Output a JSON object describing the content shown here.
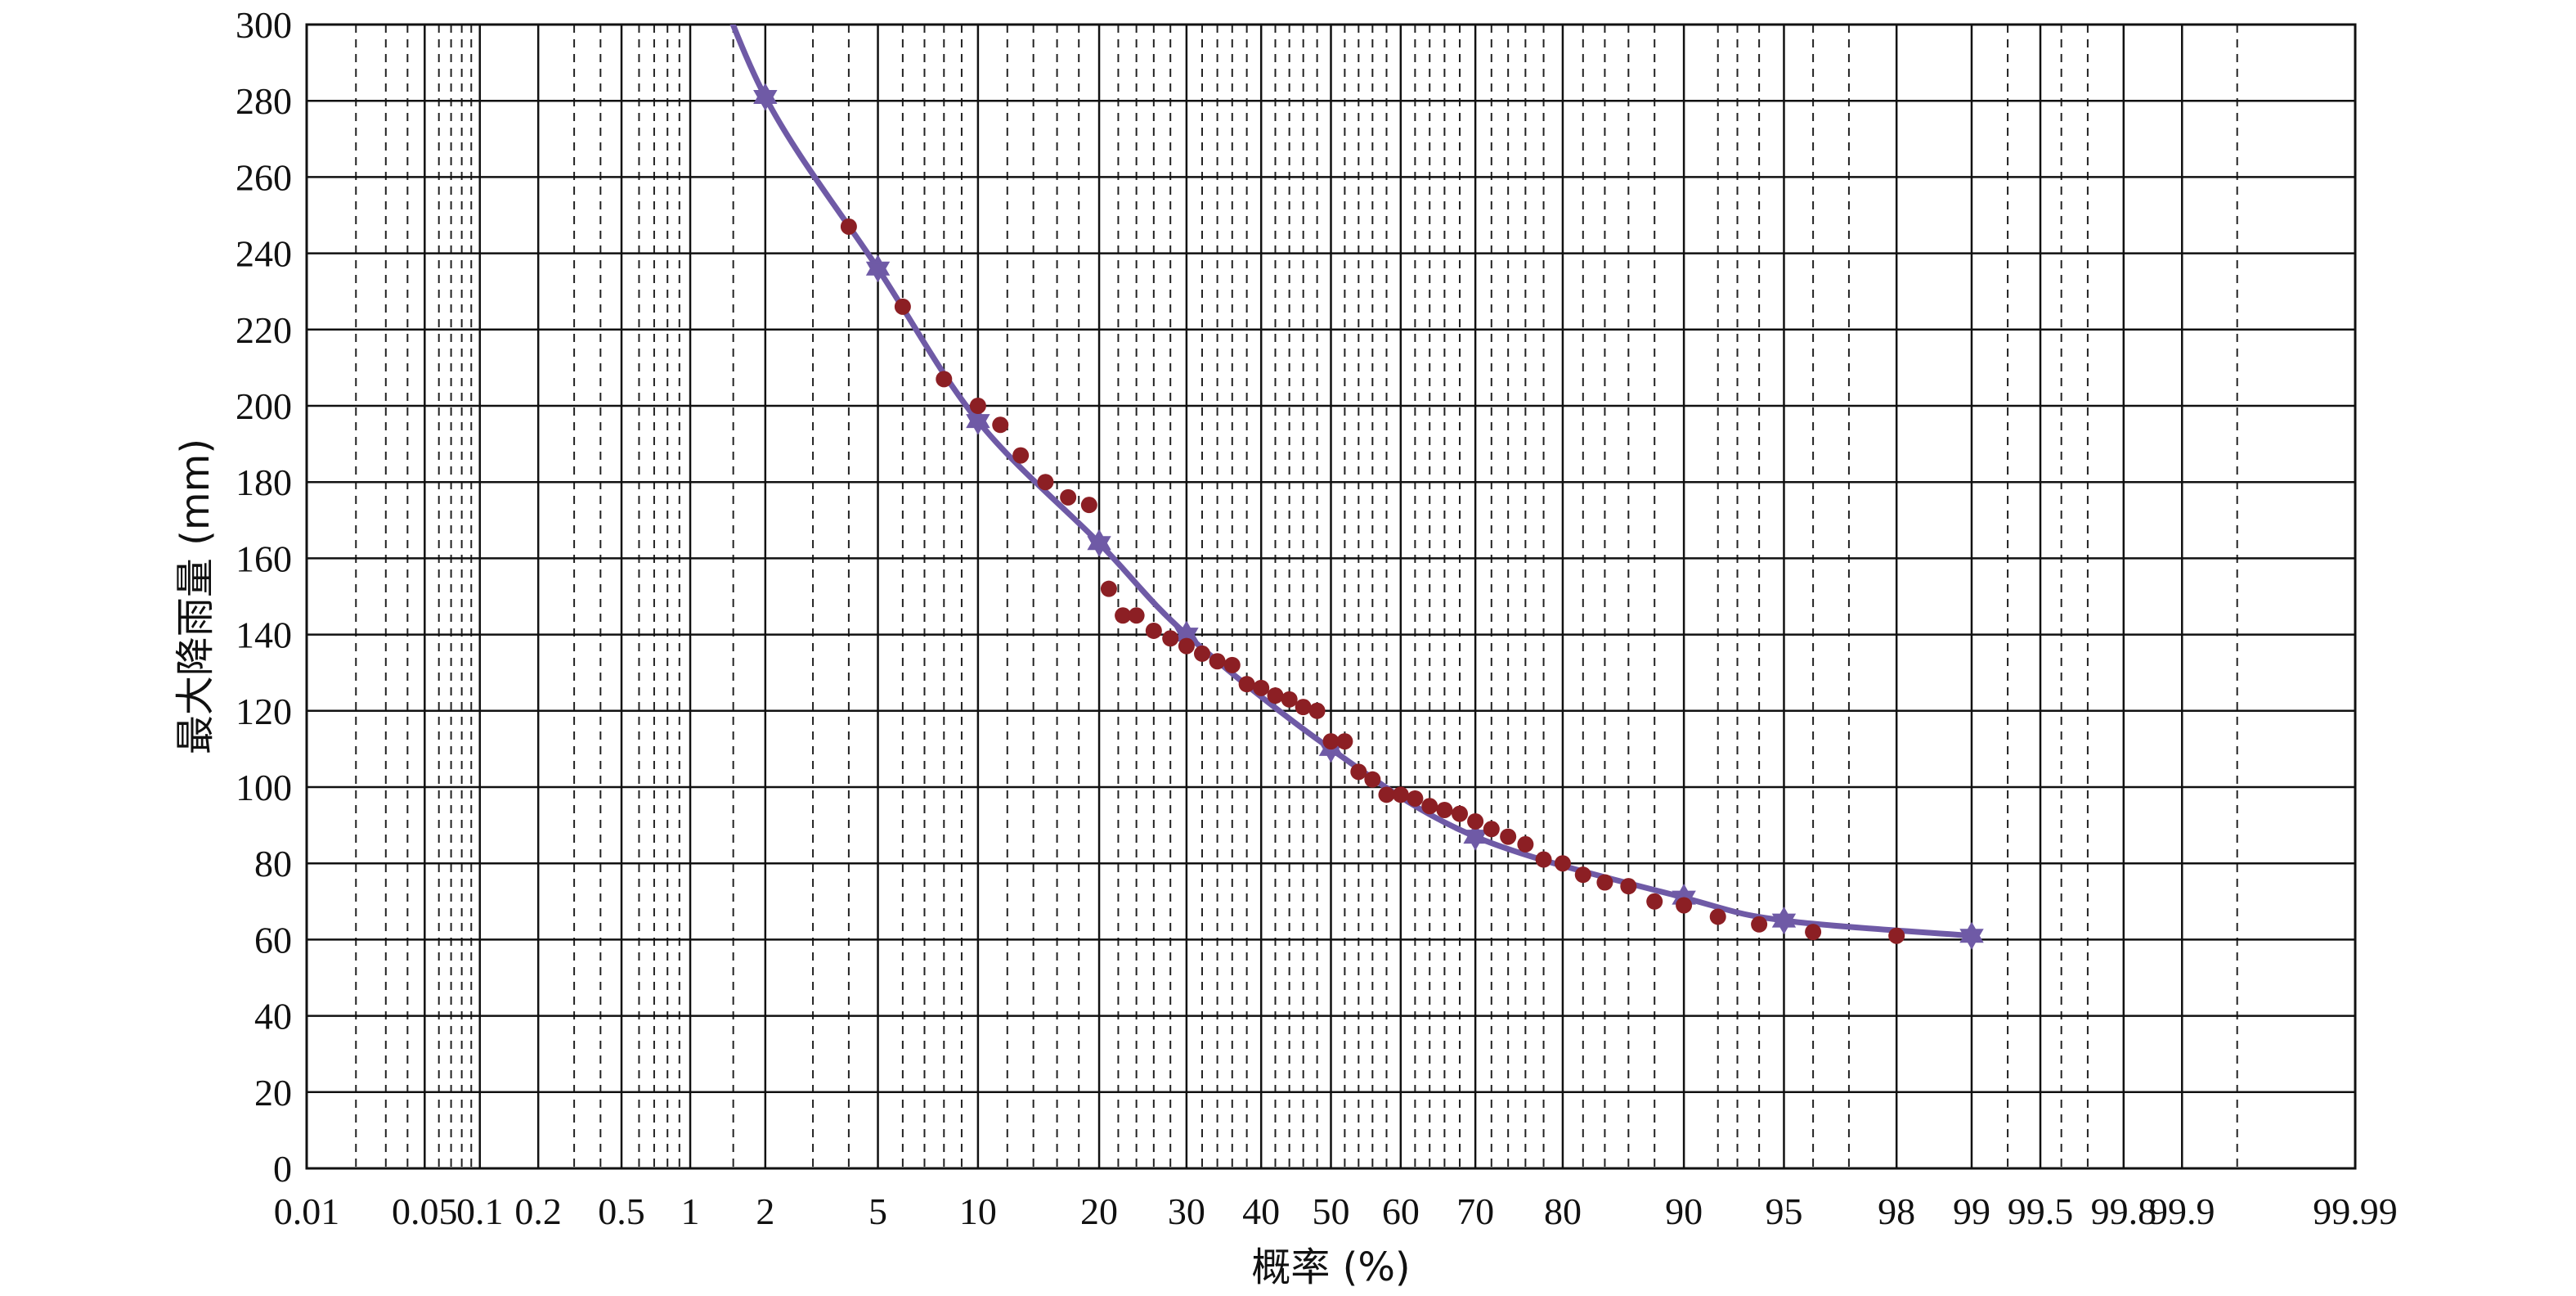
{
  "chart_data": {
    "type": "scatter",
    "xlabel": "概率 (%)",
    "ylabel": "最大降雨量 (mm)",
    "x_scale": "probability",
    "xlim": [
      0.01,
      99.99
    ],
    "ylim": [
      0,
      300
    ],
    "x_ticks": [
      0.01,
      0.05,
      0.1,
      0.2,
      0.5,
      1,
      2,
      5,
      10,
      20,
      30,
      40,
      50,
      60,
      70,
      80,
      90,
      95,
      98,
      99,
      99.5,
      99.8,
      99.9,
      99.99
    ],
    "x_tick_labels": [
      "0.01",
      "0.05",
      "0.1",
      "0.2",
      "0.5",
      "1",
      "2",
      "5",
      "10",
      "20",
      "30",
      "40",
      "50",
      "60",
      "70",
      "80",
      "90",
      "95",
      "98",
      "99",
      "99.5",
      "99.8",
      "99.9",
      "99.99"
    ],
    "y_ticks": [
      0,
      20,
      40,
      60,
      80,
      100,
      120,
      140,
      160,
      180,
      200,
      220,
      240,
      260,
      280,
      300
    ],
    "y_tick_labels": [
      "0",
      "20",
      "40",
      "60",
      "80",
      "100",
      "120",
      "140",
      "160",
      "180",
      "200",
      "220",
      "240",
      "260",
      "280",
      "300"
    ],
    "minor_gridlines_x": [
      0.02,
      0.03,
      0.04,
      0.06,
      0.07,
      0.08,
      0.09,
      0.3,
      0.4,
      0.6,
      0.7,
      0.8,
      0.9,
      1.5,
      3,
      4,
      6,
      7,
      8,
      9,
      12,
      14,
      16,
      18,
      22,
      24,
      26,
      28,
      32,
      34,
      36,
      38,
      42,
      44,
      46,
      48,
      52,
      54,
      56,
      58,
      62,
      64,
      66,
      68,
      72,
      74,
      76,
      78,
      82,
      84,
      86,
      88,
      92,
      93,
      94,
      96,
      97,
      99.3,
      99.6,
      99.7,
      99.95
    ],
    "grid": true,
    "series": [
      {
        "type": "line",
        "color": "#6f5aa6",
        "marker": "star",
        "x": [
          1,
          2,
          5,
          10,
          20,
          30,
          50,
          70,
          90,
          95,
          99
        ],
        "y": [
          330,
          281,
          236,
          196,
          164,
          140,
          110,
          87,
          71,
          65,
          61
        ]
      },
      {
        "type": "scatter",
        "color": "#8c1f24",
        "marker": "circle",
        "x": [
          4,
          6,
          8,
          10,
          11.5,
          13,
          15,
          17,
          19,
          21,
          22.5,
          24,
          26,
          28,
          30,
          32,
          34,
          36,
          38,
          40,
          42,
          44,
          46,
          48,
          50,
          52,
          54,
          56,
          58,
          60,
          62,
          64,
          66,
          68,
          70,
          72,
          74,
          76,
          78,
          80,
          82,
          84,
          86,
          88,
          90,
          92,
          94,
          96,
          98
        ],
        "y": [
          247,
          226,
          207,
          200,
          195,
          187,
          180,
          176,
          174,
          152,
          145,
          145,
          141,
          139,
          137,
          135,
          133,
          132,
          127,
          126,
          124,
          123,
          121,
          120,
          112,
          112,
          104,
          102,
          98,
          98,
          97,
          95,
          94,
          93,
          91,
          89,
          87,
          85,
          81,
          80,
          77,
          75,
          74,
          70,
          69,
          66,
          64,
          62,
          61
        ]
      }
    ]
  }
}
